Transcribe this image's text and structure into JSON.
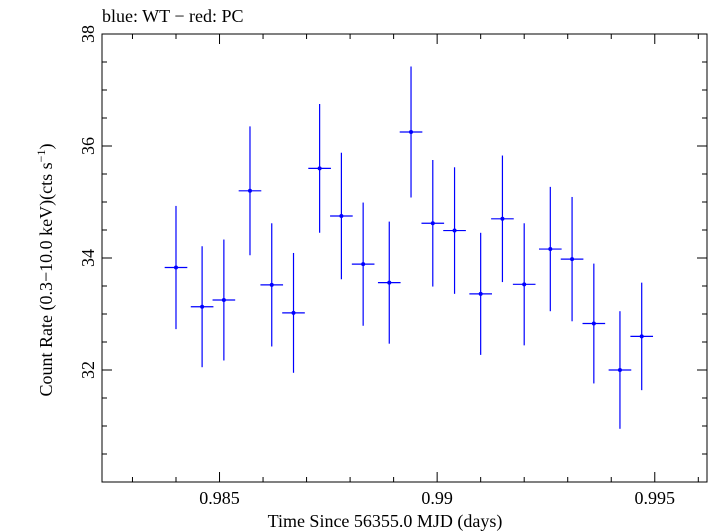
{
  "chart_data": {
    "type": "scatter",
    "title": "blue: WT − red: PC",
    "xlabel": "Time Since 56355.0 MJD (days)",
    "ylabel_main": "Count Rate (0.3−10.0 keV)(cts s",
    "ylabel_sup": "−1",
    "ylabel_close": ")",
    "xlim": [
      0.9823,
      0.9962
    ],
    "ylim": [
      30.0,
      38.0
    ],
    "xticks_major": [
      0.985,
      0.99,
      0.995
    ],
    "xtick_labels": [
      "0.985",
      "0.99",
      "0.995"
    ],
    "yticks_major": [
      32,
      34,
      36,
      38
    ],
    "ytick_labels": [
      "32",
      "34",
      "36",
      "38"
    ],
    "xhalf_width": 0.00026,
    "series": [
      {
        "name": "WT",
        "color": "#0000ff",
        "points": [
          {
            "x": 0.984,
            "y": 33.83,
            "yerr": 1.1
          },
          {
            "x": 0.9846,
            "y": 33.13,
            "yerr": 1.08
          },
          {
            "x": 0.9851,
            "y": 33.25,
            "yerr": 1.08
          },
          {
            "x": 0.9857,
            "y": 35.2,
            "yerr": 1.15
          },
          {
            "x": 0.9862,
            "y": 33.52,
            "yerr": 1.1
          },
          {
            "x": 0.9867,
            "y": 33.02,
            "yerr": 1.07
          },
          {
            "x": 0.9873,
            "y": 35.6,
            "yerr": 1.15
          },
          {
            "x": 0.9878,
            "y": 34.75,
            "yerr": 1.13
          },
          {
            "x": 0.9883,
            "y": 33.89,
            "yerr": 1.1
          },
          {
            "x": 0.9889,
            "y": 33.56,
            "yerr": 1.09
          },
          {
            "x": 0.9894,
            "y": 36.25,
            "yerr": 1.17
          },
          {
            "x": 0.9899,
            "y": 34.62,
            "yerr": 1.13
          },
          {
            "x": 0.9904,
            "y": 34.49,
            "yerr": 1.13
          },
          {
            "x": 0.991,
            "y": 33.36,
            "yerr": 1.09
          },
          {
            "x": 0.9915,
            "y": 34.7,
            "yerr": 1.13
          },
          {
            "x": 0.992,
            "y": 33.53,
            "yerr": 1.09
          },
          {
            "x": 0.9926,
            "y": 34.16,
            "yerr": 1.11
          },
          {
            "x": 0.9931,
            "y": 33.98,
            "yerr": 1.11
          },
          {
            "x": 0.9936,
            "y": 32.83,
            "yerr": 1.07
          },
          {
            "x": 0.9942,
            "y": 32.0,
            "yerr": 1.05
          },
          {
            "x": 0.9947,
            "y": 32.6,
            "yerr": 0.96
          }
        ]
      }
    ]
  }
}
